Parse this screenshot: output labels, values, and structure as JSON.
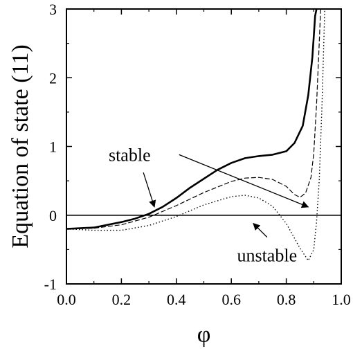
{
  "chart_data": {
    "type": "line",
    "xlabel": "φ",
    "ylabel": "Equation of state (11)",
    "xlim": [
      0.0,
      1.0
    ],
    "ylim": [
      -1,
      3
    ],
    "xticks": [
      "0.0",
      "0.2",
      "0.4",
      "0.6",
      "0.8",
      "1.0"
    ],
    "xtick_values": [
      0.0,
      0.2,
      0.4,
      0.6,
      0.8,
      1.0
    ],
    "yticks": [
      "-1",
      "0",
      "1",
      "2",
      "3"
    ],
    "ytick_values": [
      -1,
      0,
      1,
      2,
      3
    ],
    "grid": false,
    "series": [
      {
        "style": "solid",
        "points": [
          [
            0.0,
            -0.2
          ],
          [
            0.1,
            -0.18
          ],
          [
            0.2,
            -0.1
          ],
          [
            0.25,
            -0.05
          ],
          [
            0.3,
            0.02
          ],
          [
            0.35,
            0.12
          ],
          [
            0.4,
            0.25
          ],
          [
            0.45,
            0.4
          ],
          [
            0.5,
            0.53
          ],
          [
            0.55,
            0.66
          ],
          [
            0.6,
            0.76
          ],
          [
            0.65,
            0.83
          ],
          [
            0.7,
            0.86
          ],
          [
            0.75,
            0.88
          ],
          [
            0.8,
            0.93
          ],
          [
            0.83,
            1.05
          ],
          [
            0.86,
            1.3
          ],
          [
            0.88,
            1.75
          ],
          [
            0.895,
            2.3
          ],
          [
            0.905,
            2.9
          ],
          [
            0.91,
            3.0
          ]
        ]
      },
      {
        "style": "dashed",
        "points": [
          [
            0.0,
            -0.2
          ],
          [
            0.1,
            -0.19
          ],
          [
            0.2,
            -0.14
          ],
          [
            0.3,
            -0.03
          ],
          [
            0.4,
            0.14
          ],
          [
            0.5,
            0.33
          ],
          [
            0.6,
            0.49
          ],
          [
            0.65,
            0.54
          ],
          [
            0.7,
            0.55
          ],
          [
            0.75,
            0.52
          ],
          [
            0.8,
            0.42
          ],
          [
            0.83,
            0.3
          ],
          [
            0.85,
            0.26
          ],
          [
            0.87,
            0.32
          ],
          [
            0.89,
            0.55
          ],
          [
            0.9,
            0.9
          ],
          [
            0.91,
            1.6
          ],
          [
            0.92,
            2.5
          ],
          [
            0.925,
            3.0
          ]
        ]
      },
      {
        "style": "dotted",
        "points": [
          [
            0.0,
            -0.2
          ],
          [
            0.1,
            -0.22
          ],
          [
            0.2,
            -0.22
          ],
          [
            0.3,
            -0.15
          ],
          [
            0.4,
            -0.02
          ],
          [
            0.5,
            0.15
          ],
          [
            0.6,
            0.27
          ],
          [
            0.65,
            0.29
          ],
          [
            0.7,
            0.25
          ],
          [
            0.75,
            0.13
          ],
          [
            0.8,
            -0.12
          ],
          [
            0.85,
            -0.48
          ],
          [
            0.88,
            -0.66
          ],
          [
            0.9,
            -0.5
          ],
          [
            0.91,
            -0.1
          ],
          [
            0.92,
            0.5
          ],
          [
            0.93,
            1.6
          ],
          [
            0.94,
            3.0
          ]
        ]
      },
      {
        "style": "baseline",
        "points": [
          [
            0.0,
            0.0
          ],
          [
            1.0,
            0.0
          ]
        ]
      }
    ],
    "annotations": [
      {
        "text": "stable",
        "text_at": [
          0.23,
          0.88
        ],
        "arrows": [
          [
            [
              0.28,
              0.62
            ],
            [
              0.32,
              0.12
            ]
          ],
          [
            [
              0.41,
              0.88
            ],
            [
              0.88,
              0.12
            ]
          ]
        ]
      },
      {
        "text": "unstable",
        "text_at": [
          0.73,
          -0.58
        ],
        "arrows": [
          [
            [
              0.73,
              -0.32
            ],
            [
              0.68,
              -0.12
            ]
          ]
        ]
      }
    ]
  }
}
